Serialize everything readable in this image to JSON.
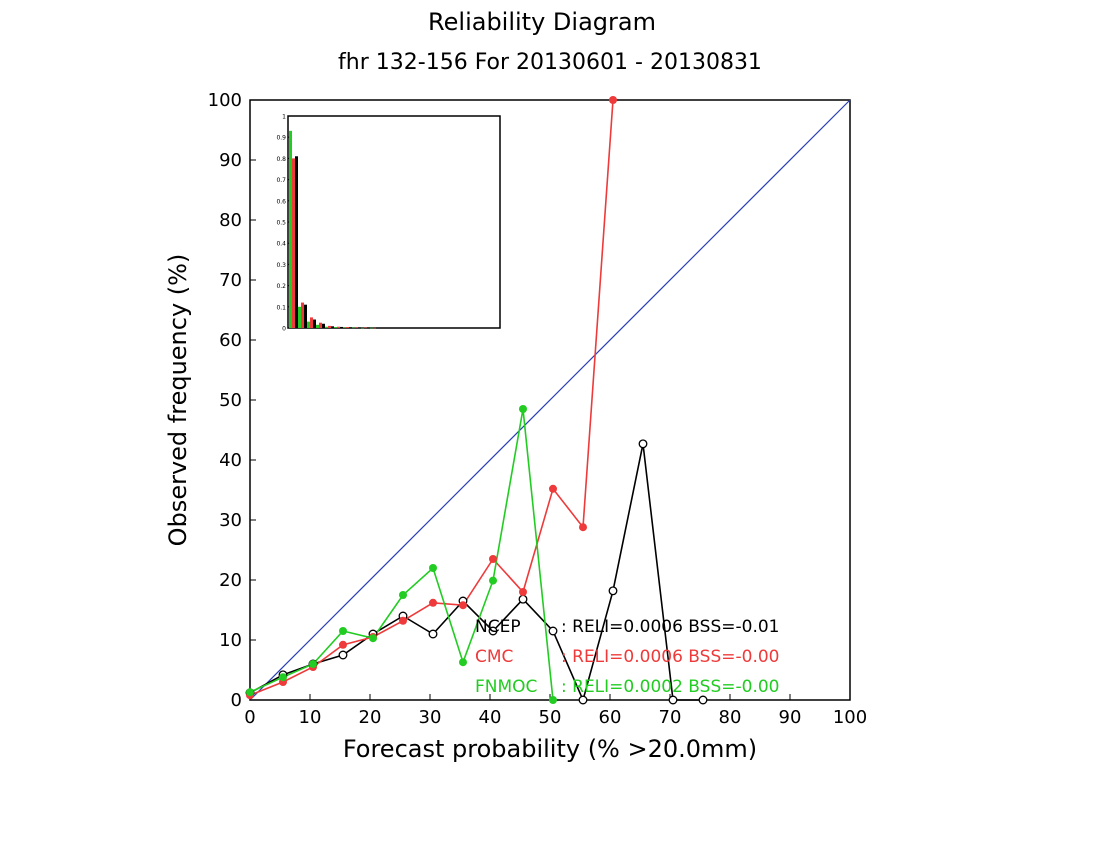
{
  "chart_data": {
    "type": "line",
    "title": "Reliability Diagram",
    "subtitle": "fhr 132-156 For 20130601 - 20130831",
    "xlabel": "Forecast probability (% >20.0mm)",
    "ylabel": "Observed frequency (%)",
    "xlim": [
      0,
      100
    ],
    "ylim": [
      0,
      100
    ],
    "x_ticks": [
      "0",
      "10",
      "20",
      "30",
      "40",
      "50",
      "60",
      "70",
      "80",
      "90",
      "100"
    ],
    "y_ticks": [
      "0",
      "10",
      "20",
      "30",
      "40",
      "50",
      "60",
      "70",
      "80",
      "90",
      "100"
    ],
    "grid": false,
    "diagonal_color": "#2b3fb5",
    "series": [
      {
        "name": "NCEP",
        "color": "#000000",
        "marker": "open-circle",
        "x": [
          0,
          5.5,
          10.5,
          15.5,
          20.5,
          25.5,
          30.5,
          35.5,
          40.5,
          45.5,
          50.5,
          55.5,
          60.5,
          65.5,
          70.5,
          75.5
        ],
        "y": [
          1.2,
          4.2,
          6.0,
          7.5,
          11.0,
          14.0,
          11.0,
          16.5,
          11.5,
          16.8,
          11.5,
          0,
          18.2,
          42.7,
          0,
          0
        ],
        "stats": ": RELI=0.0006 BSS=-0.01"
      },
      {
        "name": "CMC",
        "color": "#ee3a3a",
        "marker": "filled-circle",
        "x": [
          0,
          5.5,
          10.5,
          15.5,
          20.5,
          25.5,
          30.5,
          35.5,
          40.5,
          45.5,
          50.5,
          55.5,
          60.5
        ],
        "y": [
          0.8,
          3.0,
          5.5,
          9.2,
          10.5,
          13.2,
          16.2,
          15.8,
          23.5,
          18.0,
          35.2,
          28.8,
          100
        ],
        "stats": ": RELI=0.0006 BSS=-0.00"
      },
      {
        "name": "FNMOC",
        "color": "#22cc22",
        "marker": "filled-circle",
        "x": [
          0,
          5.5,
          10.5,
          15.5,
          20.5,
          25.5,
          30.5,
          35.5,
          40.5,
          45.5,
          50.5
        ],
        "y": [
          1.3,
          3.8,
          6.0,
          11.5,
          10.3,
          17.5,
          22.0,
          6.3,
          19.9,
          48.5,
          0
        ],
        "stats": ": RELI=0.0002 BSS=-0.00"
      }
    ],
    "inset": {
      "type": "bar",
      "ylim": [
        0,
        1
      ],
      "y_ticks": [
        "0",
        "0.1",
        "0.2",
        "0.3",
        "0.4",
        "0.5",
        "0.6",
        "0.7",
        "0.8",
        "0.9",
        "1"
      ],
      "bins": 10,
      "series": [
        {
          "name": "FNMOC",
          "color": "#22cc22",
          "values": [
            0.93,
            0.1,
            0.03,
            0.015,
            0.006,
            0.004,
            0.003,
            0.002,
            0.001,
            0.001
          ]
        },
        {
          "name": "CMC",
          "color": "#ee3a3a",
          "values": [
            0.8,
            0.12,
            0.05,
            0.025,
            0.01,
            0.006,
            0.004,
            0.003,
            0.002,
            0.001
          ]
        },
        {
          "name": "NCEP",
          "color": "#000000",
          "values": [
            0.81,
            0.11,
            0.04,
            0.02,
            0.008,
            0.005,
            0.003,
            0.002,
            0.001,
            0.001
          ]
        }
      ]
    }
  }
}
